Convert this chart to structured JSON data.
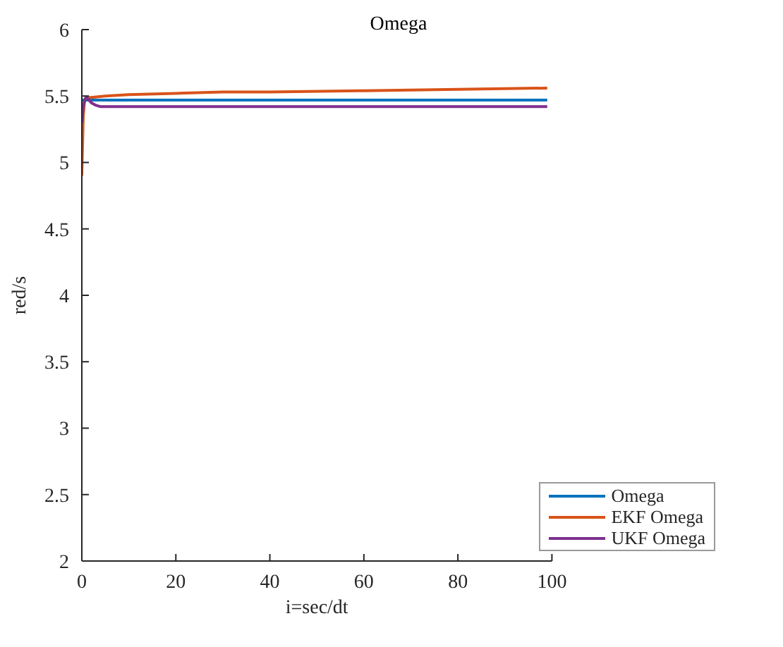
{
  "chart_data": {
    "type": "line",
    "title": "Omega",
    "xlabel": "i=sec/dt",
    "ylabel": "red/s",
    "xlim": [
      0,
      100
    ],
    "ylim": [
      2,
      6
    ],
    "xticks": [
      0,
      20,
      40,
      60,
      80,
      100
    ],
    "yticks": [
      2,
      2.5,
      3,
      3.5,
      4,
      4.5,
      5,
      5.5,
      6
    ],
    "legend": "bottom right",
    "grid": false,
    "series": [
      {
        "name": "Omega",
        "color": "#0072bd",
        "x": [
          0,
          99
        ],
        "values": [
          5.47,
          5.47
        ]
      },
      {
        "name": "EKF Omega",
        "color": "#d95319",
        "x": [
          0,
          0.3,
          0.6,
          1,
          2,
          5,
          10,
          20,
          30,
          40,
          60,
          80,
          99
        ],
        "values": [
          4.9,
          5.35,
          5.47,
          5.49,
          5.49,
          5.5,
          5.51,
          5.52,
          5.53,
          5.53,
          5.54,
          5.55,
          5.56
        ]
      },
      {
        "name": "UKF Omega",
        "color": "#7e2f8e",
        "x": [
          0,
          0.3,
          0.7,
          1,
          1.5,
          2,
          3,
          4,
          6,
          10,
          30,
          60,
          99
        ],
        "values": [
          5.3,
          5.42,
          5.48,
          5.49,
          5.47,
          5.45,
          5.43,
          5.42,
          5.42,
          5.42,
          5.42,
          5.42,
          5.42
        ]
      }
    ]
  }
}
